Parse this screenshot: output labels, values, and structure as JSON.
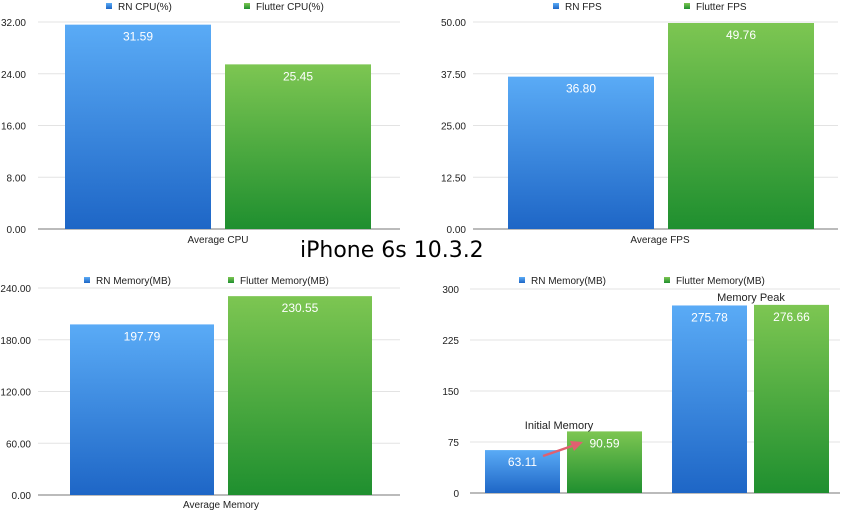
{
  "title": "iPhone 6s 10.3.2",
  "colors": {
    "rn_top": "#5aabf6",
    "rn_bottom": "#1e66c6",
    "flutter_top": "#7dc652",
    "flutter_bottom": "#1f8f2f",
    "grid": "#e3e3e3",
    "axis": "#777777",
    "annotation_arrow": "#e06070"
  },
  "chart_data": [
    {
      "type": "bar",
      "categories": [
        "Average CPU"
      ],
      "series": [
        {
          "name": "RN CPU(%)",
          "values": [
            31.59
          ],
          "labels": [
            "31.59"
          ]
        },
        {
          "name": "Flutter CPU(%)",
          "values": [
            25.45
          ],
          "labels": [
            "25.45"
          ]
        }
      ],
      "xlabel": "Average CPU",
      "ylim": [
        0,
        32
      ],
      "yticks": [
        0,
        8,
        16,
        24,
        32
      ],
      "ytick_labels": [
        "0.00",
        "8.00",
        "16.00",
        "24.00",
        "32.00"
      ],
      "legend": "top-center",
      "grid": true
    },
    {
      "type": "bar",
      "categories": [
        "Average FPS"
      ],
      "series": [
        {
          "name": "RN FPS",
          "values": [
            36.8
          ],
          "labels": [
            "36.80"
          ]
        },
        {
          "name": "Flutter FPS",
          "values": [
            49.76
          ],
          "labels": [
            "49.76"
          ]
        }
      ],
      "xlabel": "Average FPS",
      "ylim": [
        0,
        50
      ],
      "yticks": [
        0,
        12.5,
        25,
        37.5,
        50
      ],
      "ytick_labels": [
        "0.00",
        "12.50",
        "25.00",
        "37.50",
        "50.00"
      ],
      "legend": "top-center",
      "grid": true
    },
    {
      "type": "bar",
      "categories": [
        "Average Memory"
      ],
      "series": [
        {
          "name": "RN Memory(MB)",
          "values": [
            197.79
          ],
          "labels": [
            "197.79"
          ]
        },
        {
          "name": "Flutter Memory(MB)",
          "values": [
            230.55
          ],
          "labels": [
            "230.55"
          ]
        }
      ],
      "xlabel": "Average Memory",
      "ylim": [
        0,
        240
      ],
      "yticks": [
        0,
        60,
        120,
        180,
        240
      ],
      "ytick_labels": [
        "0.00",
        "60.00",
        "120.00",
        "180.00",
        "240.00"
      ],
      "legend": "top-center",
      "grid": true
    },
    {
      "type": "bar",
      "categories": [
        "Initial Memory",
        "Memory Peak"
      ],
      "series": [
        {
          "name": "RN Memory(MB)",
          "values": [
            63.11,
            275.78
          ],
          "labels": [
            "63.11",
            "275.78"
          ]
        },
        {
          "name": "Flutter Memory(MB)",
          "values": [
            90.59,
            276.66
          ],
          "labels": [
            "90.59",
            "276.66"
          ]
        }
      ],
      "xlabel": "",
      "ylim": [
        0,
        300
      ],
      "yticks": [
        0,
        75,
        150,
        225,
        300
      ],
      "ytick_labels": [
        "0",
        "75",
        "150",
        "225",
        "300"
      ],
      "legend": "top-center",
      "grid": true,
      "annotations": [
        "Initial Memory",
        "Memory Peak"
      ]
    }
  ]
}
